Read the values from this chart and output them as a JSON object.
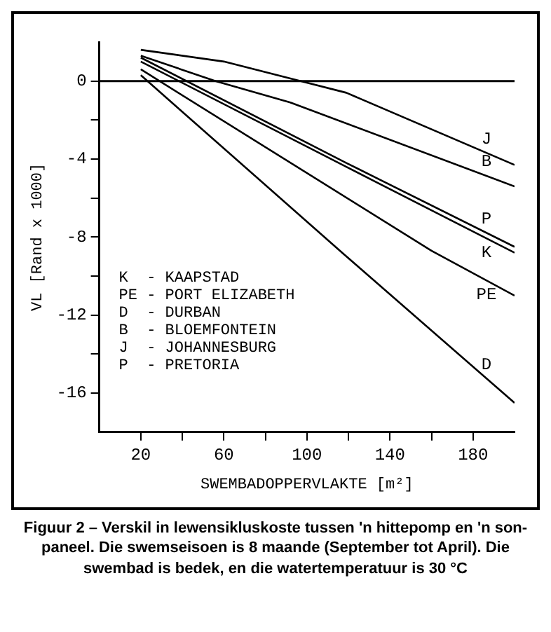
{
  "chart_data": {
    "type": "line",
    "title": "Figuur 2 – Verskil in lewensikluskoste tussen 'n hittepomp en 'n son-paneel. Die swemseisoen is 8 maande (September tot April). Die swembad is bedek, en die watertemperatuur is 30 °C",
    "xlabel": "SWEMBADOPPERVLAKTE [m²]",
    "ylabel": "VL [Rand x 1000]",
    "xlim": [
      0,
      200
    ],
    "xticks": [
      20,
      {
        "value": 40,
        "label": null
      },
      60,
      {
        "value": 80,
        "label": null
      },
      100,
      {
        "value": 120,
        "label": null
      },
      140,
      {
        "value": 160,
        "label": null
      },
      180
    ],
    "ylim": [
      -18,
      2
    ],
    "yticks": [
      -16,
      {
        "value": -14,
        "label": null
      },
      -12,
      {
        "value": -10,
        "label": null
      },
      -8,
      {
        "value": -6,
        "label": null
      },
      -4,
      {
        "value": -2,
        "label": null
      },
      0
    ],
    "grid": false,
    "legend": false,
    "marker": "none",
    "line_style": "solid",
    "ref_lines": [
      {
        "axis": "y",
        "value": 0,
        "color": "#000000"
      }
    ],
    "annotations": [
      "K  - KAAPSTAD",
      "PE - PORT ELIZABETH",
      "D  - DURBAN",
      "B  - BLOEMFONTEIN",
      "J  - JOHANNESBURG",
      "P  - PRETORIA"
    ],
    "series": [
      {
        "name": "J",
        "color": "#000000",
        "x": [
          20,
          60,
          97,
          119,
          200
        ],
        "values": [
          1.6,
          1.0,
          0,
          -0.6,
          -4.3
        ]
      },
      {
        "name": "B",
        "color": "#000000",
        "x": [
          20,
          56,
          92,
          200
        ],
        "values": [
          1.3,
          0,
          -1.1,
          -5.4
        ]
      },
      {
        "name": "P",
        "color": "#000000",
        "x": [
          20,
          119,
          200
        ],
        "values": [
          1.2,
          -4.2,
          -8.5
        ]
      },
      {
        "name": "K",
        "color": "#000000",
        "x": [
          20,
          119,
          200
        ],
        "values": [
          1.0,
          -4.4,
          -8.8
        ]
      },
      {
        "name": "PE",
        "color": "#000000",
        "x": [
          20,
          160,
          200
        ],
        "values": [
          0.6,
          -8.7,
          -11
        ]
      },
      {
        "name": "D",
        "color": "#000000",
        "x": [
          20,
          117,
          200
        ],
        "values": [
          0.3,
          -8.8,
          -16.5
        ]
      }
    ]
  }
}
